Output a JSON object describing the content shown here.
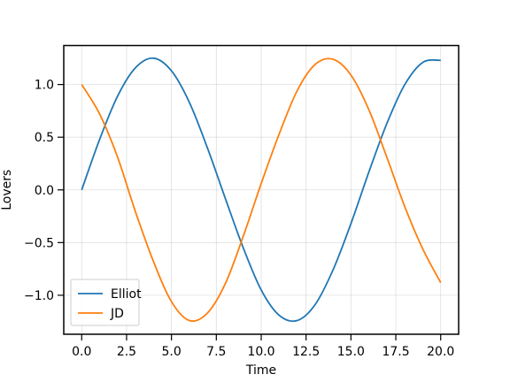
{
  "chart_data": {
    "type": "line",
    "title": "",
    "xlabel": "Time",
    "ylabel": "Lovers",
    "xlim": [
      -1.0,
      21.0
    ],
    "ylim": [
      -1.37,
      1.37
    ],
    "xticks": [
      0.0,
      2.5,
      5.0,
      7.5,
      10.0,
      12.5,
      15.0,
      17.5,
      20.0
    ],
    "xtick_labels": [
      "0.0",
      "2.5",
      "5.0",
      "7.5",
      "10.0",
      "12.5",
      "15.0",
      "17.5",
      "20.0"
    ],
    "yticks": [
      -1.0,
      -0.5,
      0.0,
      0.5,
      1.0
    ],
    "ytick_labels": [
      "−1.0",
      "−0.5",
      "0.0",
      "0.5",
      "1.0"
    ],
    "grid": true,
    "legend_position": "lower-left",
    "series": [
      {
        "name": "Elliot",
        "color": "#1f77b4",
        "x": [
          0.0,
          1.0,
          2.0,
          3.0,
          4.0,
          5.0,
          6.0,
          7.0,
          8.0,
          9.0,
          10.0,
          11.0,
          12.0,
          13.0,
          14.0,
          15.0,
          16.0,
          17.0,
          18.0,
          19.0,
          20.0
        ],
        "y": [
          0.0,
          0.48,
          0.89,
          1.16,
          1.25,
          1.13,
          0.83,
          0.4,
          -0.08,
          -0.55,
          -0.95,
          -1.19,
          -1.24,
          -1.09,
          -0.76,
          -0.32,
          0.17,
          0.63,
          1.0,
          1.21,
          1.23
        ]
      },
      {
        "name": "JD",
        "color": "#ff7f0e",
        "x": [
          0.0,
          1.0,
          2.0,
          3.0,
          4.0,
          5.0,
          6.0,
          7.0,
          8.0,
          9.0,
          10.0,
          11.0,
          12.0,
          13.0,
          14.0,
          15.0,
          16.0,
          17.0,
          18.0,
          19.0,
          20.0
        ],
        "y": [
          1.0,
          0.72,
          0.31,
          -0.21,
          -0.68,
          -1.06,
          -1.24,
          -1.17,
          -0.89,
          -0.44,
          0.06,
          0.53,
          0.94,
          1.19,
          1.24,
          1.09,
          0.76,
          0.31,
          -0.16,
          -0.56,
          -0.88
        ]
      }
    ]
  }
}
